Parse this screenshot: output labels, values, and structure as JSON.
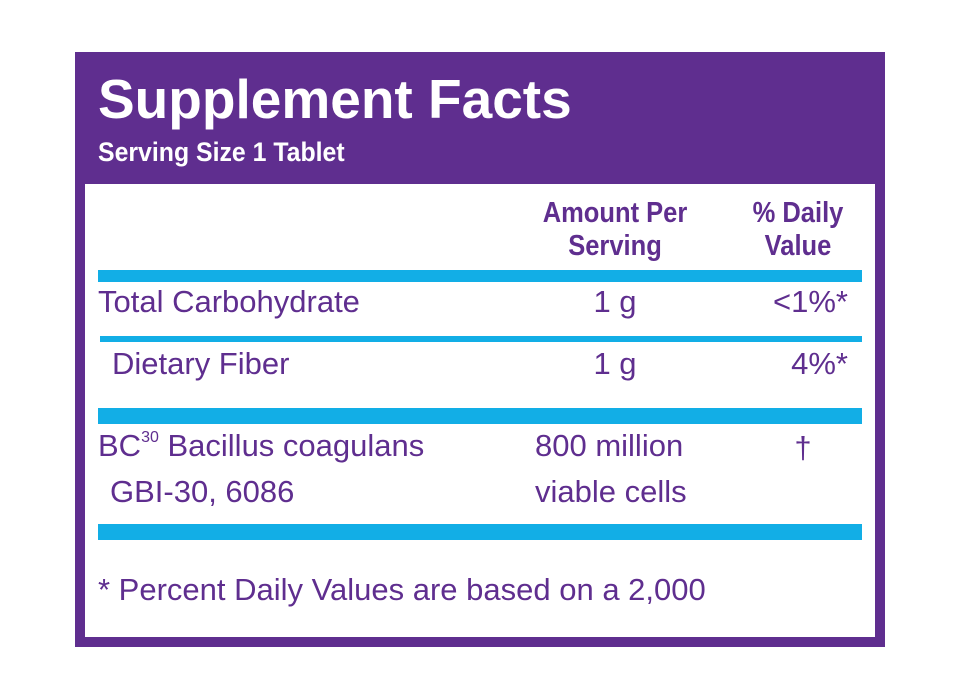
{
  "header": {
    "title": "Supplement Facts",
    "serving_size": "Serving Size 1 Tablet"
  },
  "columns": {
    "amount_line1": "Amount Per",
    "amount_line2": "Serving",
    "dv_line1": "% Daily",
    "dv_line2": "Value"
  },
  "rows": [
    {
      "name": "Total Carbohydrate",
      "amount": "1 g",
      "dv": "<1%*"
    },
    {
      "name": "Dietary Fiber",
      "amount": "1 g",
      "dv": "4%*"
    },
    {
      "name_prefix": "BC",
      "name_sup": "30",
      "name_rest": " Bacillus coagulans",
      "name_line2": "GBI-30, 6086",
      "amount_line1": "800 million",
      "amount_line2": "viable cells",
      "dv": "†"
    }
  ],
  "footnote": "* Percent Daily Values are based on a 2,000",
  "colors": {
    "purple": "#5f2e8f",
    "blue": "#12aee6",
    "white": "#ffffff"
  }
}
